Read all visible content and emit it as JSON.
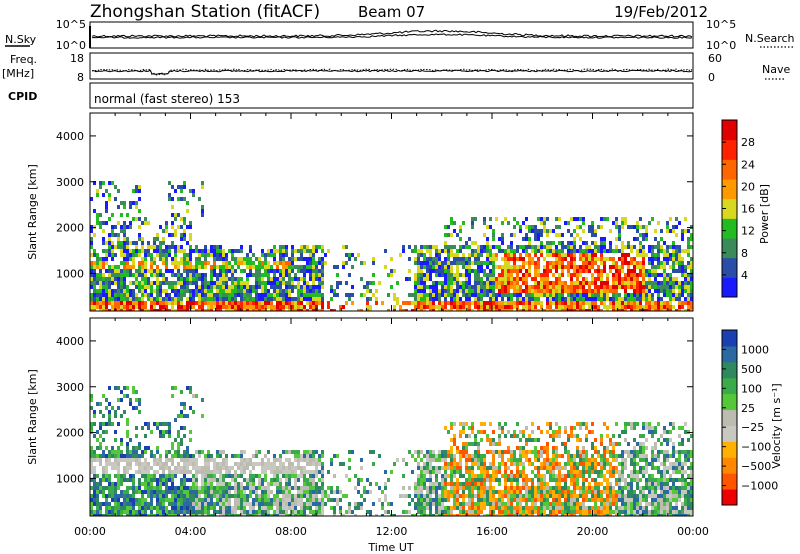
{
  "header": {
    "title": "Zhongshan Station (fitACF)",
    "beam": "Beam 07",
    "date": "19/Feb/2012"
  },
  "chart_data": [
    {
      "type": "line",
      "panel": "nsky-nsearch",
      "left_label": "N.Sky",
      "right_label": "N.Search",
      "left_ticks": [
        "10^5",
        "10^0"
      ],
      "right_ticks": [
        "10^5",
        "10^0"
      ],
      "y_scale": "log",
      "ylim": [
        1,
        100000
      ]
    },
    {
      "type": "line",
      "panel": "freq-nave",
      "left_label_line1": "Freq.",
      "left_label_line2": "[MHz]",
      "left_ticks": [
        "18",
        "8"
      ],
      "right_label": "Nave",
      "right_ticks": [
        "60",
        "0"
      ],
      "ylim_left": [
        8,
        18
      ],
      "ylim_right": [
        0,
        60
      ]
    },
    {
      "type": "table",
      "panel": "cpid",
      "label": "CPID",
      "text": "normal (fast stereo) 153"
    },
    {
      "type": "heatmap",
      "panel": "power",
      "ylabel": "Slant Range [km]",
      "yticks": [
        "1000",
        "2000",
        "3000",
        "4000"
      ],
      "ylim": [
        180,
        4500
      ],
      "colorbar_label": "Power [dB]",
      "colorbar_ticks": [
        "4",
        "8",
        "12",
        "16",
        "20",
        "24",
        "28"
      ],
      "colorbar_colors": [
        "#1a1aff",
        "#2a4ea8",
        "#3a8a5a",
        "#22bb22",
        "#d8d820",
        "#ff9900",
        "#ff6600",
        "#ff2200",
        "#e00000"
      ]
    },
    {
      "type": "heatmap",
      "panel": "velocity",
      "ylabel": "Slant Range [km]",
      "yticks": [
        "1000",
        "2000",
        "3000",
        "4000"
      ],
      "ylim": [
        180,
        4500
      ],
      "colorbar_label": "Velocity [m s⁻¹]",
      "colorbar_ticks": [
        "1000",
        "500",
        "100",
        "25",
        "−25",
        "−100",
        "−500",
        "−1000"
      ],
      "colorbar_colors": [
        "#1a3fb0",
        "#2a6aa0",
        "#2e8a5e",
        "#3aaa4a",
        "#55c83a",
        "#bcbcb0",
        "#c8c8c0",
        "#ffb000",
        "#ff8800",
        "#ff5500",
        "#ee0000"
      ]
    }
  ],
  "xaxis": {
    "label": "Time UT",
    "ticks": [
      "00:00",
      "04:00",
      "08:00",
      "12:00",
      "16:00",
      "20:00",
      "00:00"
    ]
  }
}
